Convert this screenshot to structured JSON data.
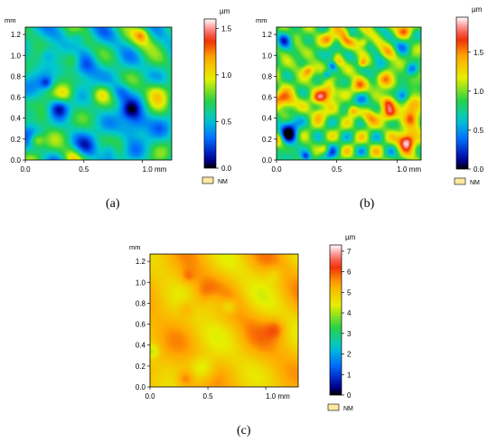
{
  "panels": [
    {
      "caption": "(a)"
    },
    {
      "caption": "(b)"
    },
    {
      "caption": "(c)"
    }
  ],
  "chart_data": [
    {
      "type": "heatmap",
      "panel": "(a)",
      "x_unit_label": "mm",
      "y_unit_label": "mm",
      "x_ticks": [
        "0.0",
        "0.5",
        "1.0 mm"
      ],
      "x_tick_values": [
        0.0,
        0.5,
        1.0
      ],
      "y_ticks": [
        "0.0",
        "0.2",
        "0.4",
        "0.6",
        "0.8",
        "1.0",
        "1.2"
      ],
      "y_tick_values": [
        0.0,
        0.2,
        0.4,
        0.6,
        0.8,
        1.0,
        1.2
      ],
      "xlim": [
        0,
        1.25
      ],
      "ylim": [
        0,
        1.27
      ],
      "colorbar": {
        "unit": "µm",
        "ticks": [
          "0.0",
          "0.5",
          "1.0",
          "1.5"
        ],
        "tick_values": [
          0.0,
          0.5,
          1.0,
          1.5
        ],
        "range": [
          0,
          1.6
        ],
        "legend_label": "NM"
      },
      "surface_style": "mid-green with scattered blue pits and red peaks",
      "level_range": [
        0,
        1.6
      ],
      "base_level": 0.62,
      "amplitude": 0.5,
      "texture": "medium",
      "seed": 11
    },
    {
      "type": "heatmap",
      "panel": "(b)",
      "x_unit_label": "mm",
      "y_unit_label": "mm",
      "x_ticks": [
        "0.0",
        "0.5",
        "1.0 mm"
      ],
      "x_tick_values": [
        0.0,
        0.5,
        1.0
      ],
      "y_ticks": [
        "0.0",
        "0.2",
        "0.4",
        "0.6",
        "0.8",
        "1.0",
        "1.2"
      ],
      "y_tick_values": [
        0.0,
        0.2,
        0.4,
        0.6,
        0.8,
        1.0,
        1.2
      ],
      "xlim": [
        0,
        1.2
      ],
      "ylim": [
        0,
        1.27
      ],
      "colorbar": {
        "unit": "µm",
        "ticks": [
          "0.0",
          "0.5",
          "1.0",
          "1.5"
        ],
        "tick_values": [
          0.0,
          0.5,
          1.0,
          1.5
        ],
        "range": [
          0,
          1.95
        ],
        "legend_label": "NM"
      },
      "surface_style": "dense high-frequency blue/green/red pattern",
      "level_range": [
        0,
        1.95
      ],
      "base_level": 0.85,
      "amplitude": 0.85,
      "texture": "fine",
      "seed": 29
    },
    {
      "type": "heatmap",
      "panel": "(c)",
      "x_unit_label": "mm",
      "y_unit_label": "mm",
      "x_ticks": [
        "0.0",
        "0.5",
        "1.0 mm"
      ],
      "x_tick_values": [
        0.0,
        0.5,
        1.0
      ],
      "y_ticks": [
        "0.0",
        "0.2",
        "0.4",
        "0.6",
        "0.8",
        "1.0",
        "1.2"
      ],
      "y_tick_values": [
        0.0,
        0.2,
        0.4,
        0.6,
        0.8,
        1.0,
        1.2
      ],
      "xlim": [
        0,
        1.28
      ],
      "ylim": [
        0,
        1.27
      ],
      "colorbar": {
        "unit": "µm",
        "ticks": [
          "0",
          "1",
          "2",
          "3",
          "4",
          "5",
          "6",
          "7"
        ],
        "tick_values": [
          0,
          1,
          2,
          3,
          4,
          5,
          6,
          7
        ],
        "range": [
          0,
          7.3
        ],
        "legend_label": "NM"
      },
      "surface_style": "smooth orange surface with yellow patches",
      "level_range": [
        0,
        7.3
      ],
      "base_level": 5.1,
      "amplitude": 0.75,
      "texture": "smooth",
      "seed": 47
    }
  ]
}
